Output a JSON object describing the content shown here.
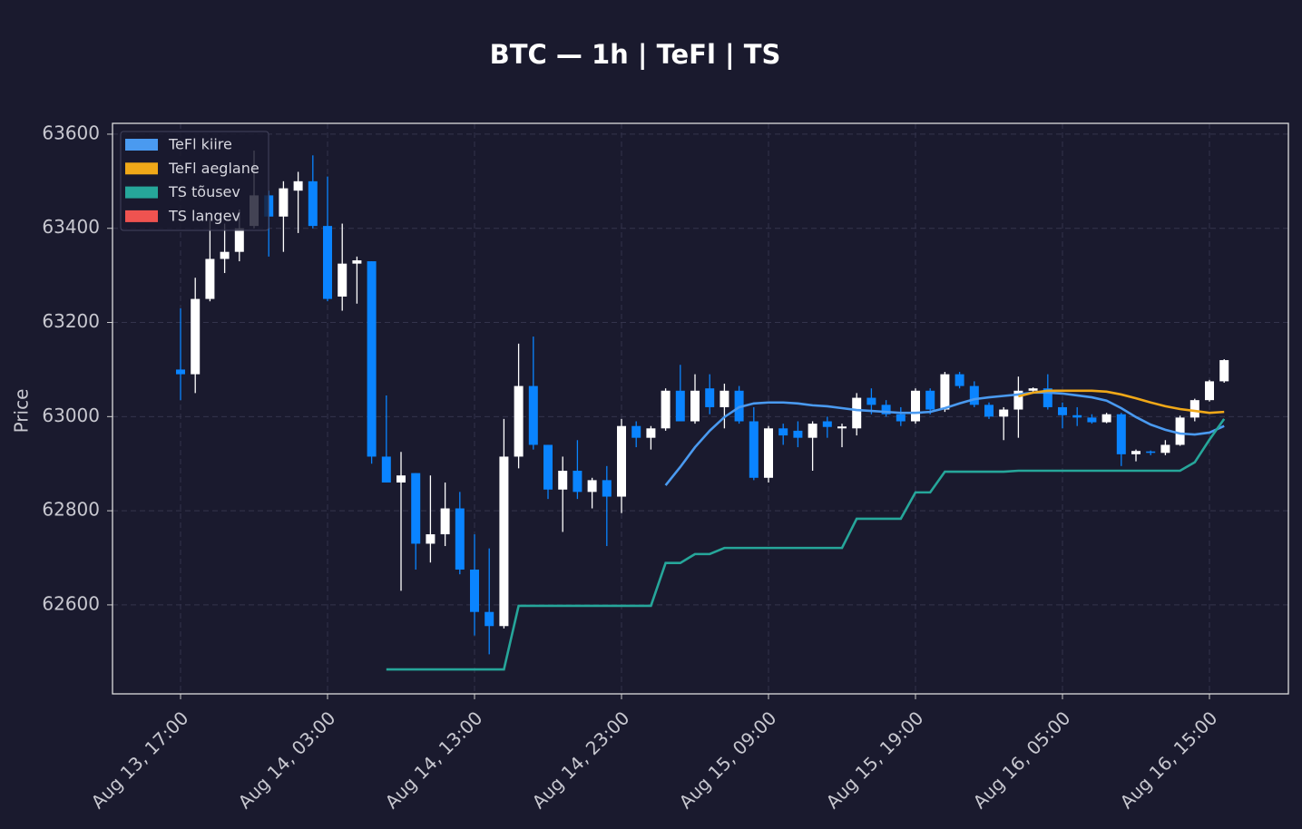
{
  "chart_data": {
    "type": "candlestick",
    "title": "BTC — 1h  |  TeFl  |  TS",
    "ylabel": "Price",
    "x": [
      "Aug 13, 17:00",
      null,
      null,
      null,
      null,
      null,
      null,
      null,
      null,
      null,
      "Aug 14, 03:00",
      null,
      null,
      null,
      null,
      null,
      null,
      null,
      null,
      null,
      "Aug 14, 13:00",
      null,
      null,
      null,
      null,
      null,
      null,
      null,
      null,
      null,
      "Aug 14, 23:00",
      null,
      null,
      null,
      null,
      null,
      null,
      null,
      null,
      null,
      "Aug 15, 09:00",
      null,
      null,
      null,
      null,
      null,
      null,
      null,
      null,
      null,
      "Aug 15, 19:00",
      null,
      null,
      null,
      null,
      null,
      null,
      null,
      null,
      null,
      "Aug 16, 05:00",
      null,
      null,
      null,
      null,
      null,
      null,
      null,
      null,
      null,
      "Aug 16, 15:00",
      null
    ],
    "xlim": [
      -4.63,
      75.37
    ],
    "ylim": [
      62411,
      63623
    ],
    "yticks": [
      62600,
      62800,
      63000,
      63200,
      63400,
      63600
    ],
    "grid": true,
    "legend": "upper left",
    "up_color": "#ffffff",
    "down_color": "#0a84ff",
    "open": [
      63100,
      63090,
      63250,
      63335,
      63350,
      63405,
      63470,
      63425,
      63480,
      63500,
      63405,
      63255,
      63325,
      63330,
      62915,
      62860,
      62880,
      62730,
      62750,
      62805,
      62675,
      62585,
      62555,
      62915,
      63065,
      62940,
      62845,
      62885,
      62840,
      62865,
      62830,
      62980,
      62955,
      62975,
      63055,
      62990,
      63060,
      63020,
      63055,
      62990,
      62870,
      62975,
      62970,
      62955,
      62990,
      62975,
      62975,
      63040,
      63025,
      63005,
      62990,
      63055,
      63015,
      63090,
      63065,
      63025,
      63000,
      63015,
      63055,
      63060,
      63020,
      63003,
      62998,
      62988,
      63005,
      62920,
      62926,
      62923,
      62940,
      62998,
      63035,
      63075
    ],
    "high": [
      63230,
      63295,
      63420,
      63410,
      63440,
      63565,
      63480,
      63500,
      63520,
      63555,
      63510,
      63410,
      63340,
      63330,
      63045,
      62925,
      62880,
      62875,
      62860,
      62840,
      62750,
      62720,
      62995,
      63155,
      63170,
      62940,
      62915,
      62950,
      62870,
      62895,
      62995,
      62990,
      62980,
      63060,
      63110,
      63090,
      63090,
      63070,
      63065,
      63020,
      62980,
      62985,
      62990,
      62990,
      63000,
      62985,
      63050,
      63060,
      63035,
      63020,
      63060,
      63060,
      63095,
      63095,
      63075,
      63030,
      63020,
      63085,
      63062,
      63090,
      63030,
      63020,
      63005,
      63008,
      63008,
      62930,
      62928,
      62950,
      63002,
      63038,
      63078,
      63122
    ],
    "low": [
      63035,
      63050,
      63245,
      63305,
      63330,
      63400,
      63340,
      63350,
      63390,
      63400,
      63245,
      63225,
      63240,
      62900,
      62860,
      62630,
      62675,
      62690,
      62725,
      62665,
      62535,
      62495,
      62550,
      62890,
      62930,
      62825,
      62755,
      62825,
      62805,
      62725,
      62795,
      62935,
      62930,
      62970,
      62990,
      62985,
      63005,
      62975,
      62985,
      62865,
      62860,
      62940,
      62935,
      62885,
      62955,
      62935,
      62960,
      63005,
      63000,
      62980,
      62985,
      63005,
      63010,
      63060,
      63020,
      62995,
      62950,
      62955,
      63050,
      63015,
      62975,
      62980,
      62985,
      62986,
      62895,
      62905,
      62918,
      62918,
      62938,
      62990,
      63032,
      63072
    ],
    "close": [
      63090,
      63250,
      63335,
      63350,
      63400,
      63470,
      63425,
      63485,
      63500,
      63405,
      63250,
      63325,
      63332,
      62915,
      62860,
      62875,
      62730,
      62750,
      62805,
      62675,
      62585,
      62555,
      62915,
      63065,
      62940,
      62845,
      62885,
      62840,
      62865,
      62830,
      62980,
      62955,
      62975,
      63055,
      62990,
      63055,
      63020,
      63055,
      62990,
      62870,
      62975,
      62960,
      62955,
      62985,
      62978,
      62979,
      63040,
      63025,
      63005,
      62990,
      63055,
      63015,
      63090,
      63065,
      63025,
      63000,
      63015,
      63055,
      63060,
      63020,
      63003,
      62998,
      62988,
      63005,
      62920,
      62927,
      62923,
      62940,
      62998,
      63035,
      63075,
      63120
    ],
    "series": [
      {
        "name": "TeFl kiire",
        "color": "#4a9af0",
        "values": [
          null,
          null,
          null,
          null,
          null,
          null,
          null,
          null,
          null,
          null,
          null,
          null,
          null,
          null,
          null,
          null,
          null,
          null,
          null,
          null,
          null,
          null,
          null,
          null,
          null,
          null,
          null,
          null,
          null,
          null,
          null,
          null,
          null,
          62854,
          62893,
          62935,
          62970,
          62999,
          63020,
          63028,
          63030,
          63030,
          63028,
          63024,
          63022,
          63018,
          63014,
          63012,
          63010,
          63008,
          63008,
          63010,
          63018,
          63028,
          63037,
          63041,
          63044,
          63047,
          63051,
          63051,
          63049,
          63045,
          63041,
          63034,
          63018,
          62999,
          62983,
          62972,
          62964,
          62962,
          62966,
          62980
        ]
      },
      {
        "name": "TeFl aeglane",
        "color": "#f0a818",
        "values": [
          null,
          null,
          null,
          null,
          null,
          null,
          null,
          null,
          null,
          null,
          null,
          null,
          null,
          null,
          null,
          null,
          null,
          null,
          null,
          null,
          null,
          null,
          null,
          null,
          null,
          null,
          null,
          null,
          null,
          null,
          null,
          null,
          null,
          null,
          null,
          null,
          null,
          null,
          null,
          null,
          null,
          null,
          null,
          null,
          null,
          null,
          null,
          null,
          null,
          null,
          null,
          null,
          null,
          null,
          null,
          null,
          null,
          63043,
          63051,
          63055,
          63055,
          63055,
          63055,
          63053,
          63047,
          63039,
          63030,
          63022,
          63016,
          63012,
          63008,
          63010
        ]
      },
      {
        "name": "TS tõusev",
        "color": "#26a69a",
        "values": [
          null,
          null,
          null,
          null,
          null,
          null,
          null,
          null,
          null,
          null,
          null,
          null,
          null,
          null,
          62463,
          62463,
          62463,
          62463,
          62463,
          62463,
          62463,
          62463,
          62463,
          62598,
          62598,
          62598,
          62598,
          62598,
          62598,
          62598,
          62598,
          62598,
          62598,
          62689,
          62689,
          62708,
          62708,
          62721,
          62721,
          62721,
          62721,
          62721,
          62721,
          62721,
          62721,
          62721,
          62783,
          62783,
          62783,
          62783,
          62839,
          62839,
          62883,
          62883,
          62883,
          62883,
          62883,
          62885,
          62885,
          62885,
          62885,
          62885,
          62885,
          62885,
          62885,
          62885,
          62885,
          62885,
          62885,
          62903,
          62951,
          62995
        ]
      },
      {
        "name": "TS langev",
        "color": "#ef5350",
        "values": [
          null,
          null,
          null,
          null,
          null,
          null,
          null,
          null,
          null,
          null,
          null,
          null,
          null,
          null,
          null,
          null,
          null,
          null,
          null,
          null,
          null,
          null,
          null,
          null,
          null,
          null,
          null,
          null,
          null,
          null,
          null,
          null,
          null,
          null,
          null,
          null,
          null,
          null,
          null,
          null,
          null,
          null,
          null,
          null,
          null,
          null,
          null,
          null,
          null,
          null,
          null,
          null,
          null,
          null,
          null,
          null,
          null,
          null,
          null,
          null,
          null,
          null,
          null,
          null,
          null,
          null,
          null,
          null,
          null,
          null,
          null,
          null
        ]
      }
    ]
  }
}
